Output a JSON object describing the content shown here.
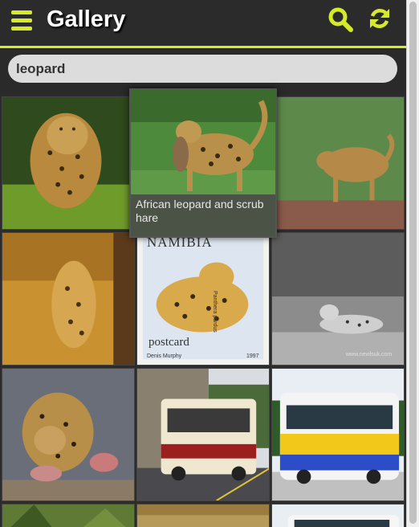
{
  "header": {
    "title": "Gallery",
    "accent_color": "#d4ea2a",
    "icons": [
      "menu-icon",
      "search-icon",
      "refresh-icon"
    ]
  },
  "search": {
    "value": "leopard"
  },
  "popup": {
    "caption": "African leopard and scrub hare"
  },
  "stamp": {
    "country": "NAMIBIA",
    "label": "postcard",
    "artist": "Denis Murphy",
    "year": "1997",
    "species": "Panthera pardus"
  },
  "watermark": "www.nevilsuk.com"
}
